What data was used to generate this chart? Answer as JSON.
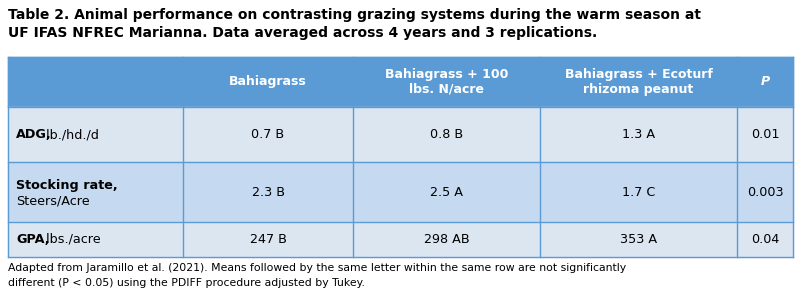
{
  "title_line1": "Table 2. Animal performance on contrasting grazing systems during the warm season at",
  "title_line2": "UF IFAS NFREC Marianna. Data averaged across 4 years and 3 replications.",
  "header_bg": "#5b9bd5",
  "header_text_color": "#ffffff",
  "row_bg_light": "#dce6f1",
  "row_bg_medium": "#c5d9f1",
  "border_color": "#5b9bd5",
  "col_headers": [
    "Bahiagrass",
    "Bahiagrass + 100\nlbs. N/acre",
    "Bahiagrass + Ecoturf\nrhizoma peanut",
    "P"
  ],
  "data": [
    [
      "0.7 B",
      "0.8 B",
      "1.3 A",
      "0.01"
    ],
    [
      "2.3 B",
      "2.5 A",
      "1.7 C",
      "0.003"
    ],
    [
      "247 B",
      "298 AB",
      "353 A",
      "0.04"
    ]
  ],
  "footnote_line1": "Adapted from Jaramillo et al. (2021). Means followed by the same letter within the same row are not significantly",
  "footnote_line2": "different (P < 0.05) using the PDIFF procedure adjusted by Tukey.",
  "figsize": [
    8.0,
    3.03
  ]
}
